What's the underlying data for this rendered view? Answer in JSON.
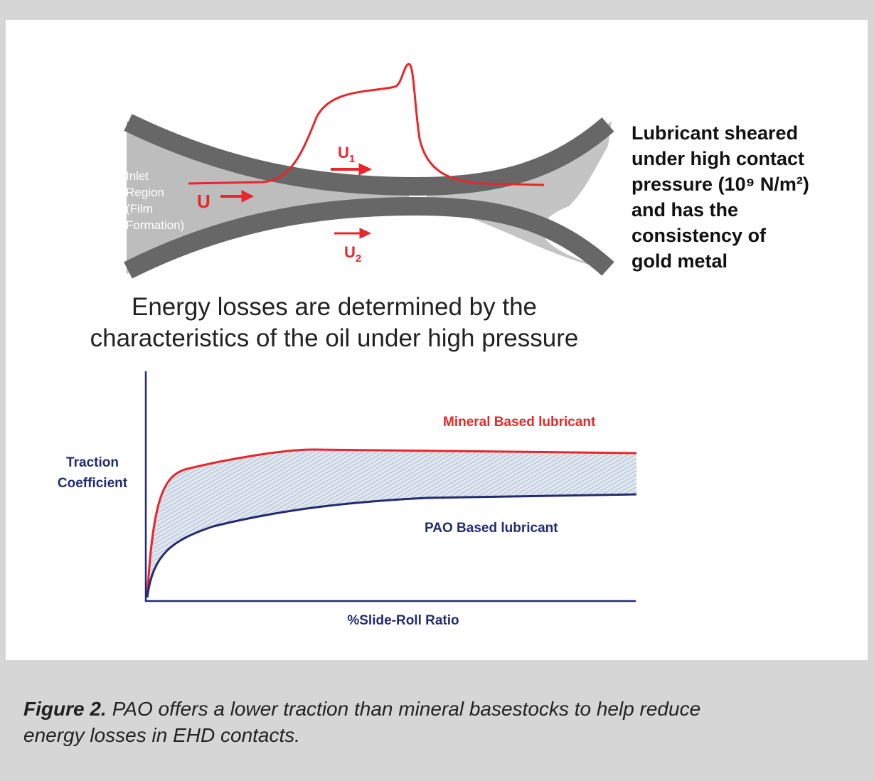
{
  "diagram": {
    "inlet_label": [
      "Inlet",
      "Region",
      "(Film",
      "Formation)"
    ],
    "velocity_labels": [
      {
        "base": "U",
        "sub": "1"
      },
      {
        "base": "U",
        "sub": ""
      },
      {
        "base": "U",
        "sub": "2"
      }
    ],
    "side_note": [
      "Lubricant sheared",
      "under high contact",
      "pressure (10⁹ N/m²)",
      "and has the",
      "consistency of",
      "gold metal"
    ]
  },
  "heading": [
    "Energy losses are determined by the",
    "characteristics of the oil under high pressure"
  ],
  "chart": {
    "series_labels": [
      "Mineral Based lubricant",
      "PAO Based lubricant"
    ],
    "y_label": [
      "Traction",
      "Coefficient"
    ],
    "x_label": "%Slide-Roll Ratio"
  },
  "caption": {
    "label": "Figure 2.",
    "text": "PAO offers a lower traction than mineral basestocks to help reduce",
    "text_cont": "energy losses in EHD contacts."
  }
}
